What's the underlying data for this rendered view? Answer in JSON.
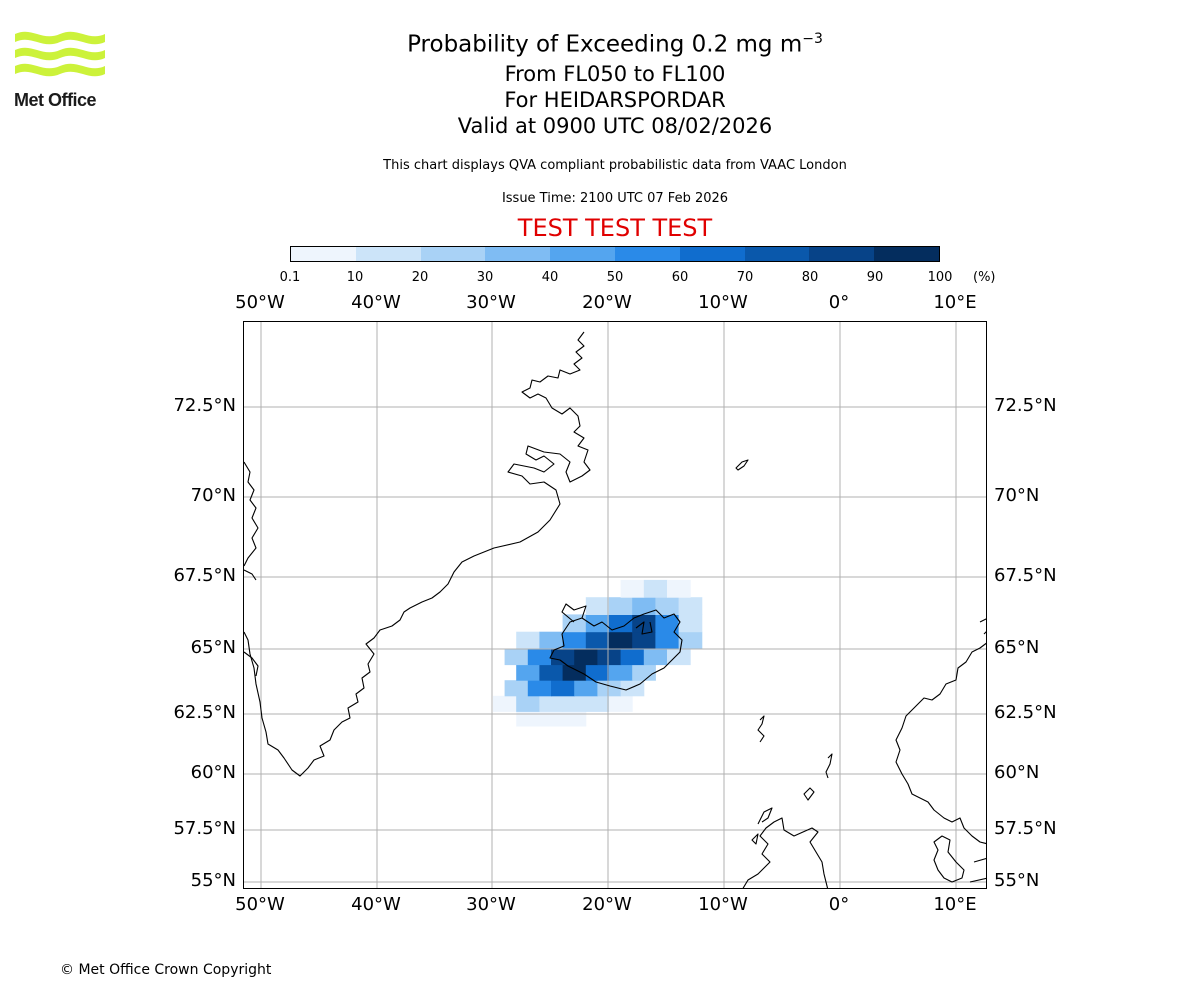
{
  "logo": {
    "text": "Met Office",
    "color": "#ccf23a"
  },
  "header": {
    "title_main": "Probability of Exceeding 0.2 mg m",
    "title_exp": "−3",
    "levels": "From FL050 to FL100",
    "target": "For HEIDARSPORDAR",
    "valid": "Valid at 0900 UTC 08/02/2026",
    "description": "This chart displays QVA compliant probabilistic data from VAAC London",
    "issue_time": "Issue Time: 2100 UTC 07 Feb 2026",
    "test_banner": "TEST TEST TEST",
    "test_color": "#e00000"
  },
  "colorbar": {
    "ticks": [
      "0.1",
      "10",
      "20",
      "30",
      "40",
      "50",
      "60",
      "70",
      "80",
      "90",
      "100"
    ],
    "unit": "(%)",
    "colors": [
      "#eef5fd",
      "#cce4f9",
      "#a9d2f6",
      "#7fbcf3",
      "#54a5ef",
      "#2a8ae8",
      "#106dce",
      "#0a58ab",
      "#074388",
      "#042d5e"
    ]
  },
  "map": {
    "lon_labels": [
      "50°W",
      "40°W",
      "30°W",
      "20°W",
      "10°W",
      "0°",
      "10°E"
    ],
    "lat_labels": [
      "72.5°N",
      "70°N",
      "67.5°N",
      "65°N",
      "62.5°N",
      "60°N",
      "57.5°N",
      "55°N"
    ],
    "plume": [
      {
        "lon": -27,
        "lat": 62.3,
        "p": 0.1
      },
      {
        "lon": -25,
        "lat": 62.3,
        "p": 0.1
      },
      {
        "lon": -23,
        "lat": 62.3,
        "p": 0.1
      },
      {
        "lon": -29,
        "lat": 62.9,
        "p": 0.1
      },
      {
        "lon": -27,
        "lat": 62.9,
        "p": 20
      },
      {
        "lon": -25,
        "lat": 62.9,
        "p": 10
      },
      {
        "lon": -23,
        "lat": 62.9,
        "p": 10
      },
      {
        "lon": -21,
        "lat": 62.9,
        "p": 10
      },
      {
        "lon": -19,
        "lat": 62.9,
        "p": 0.1
      },
      {
        "lon": -28,
        "lat": 63.5,
        "p": 20
      },
      {
        "lon": -26,
        "lat": 63.5,
        "p": 50
      },
      {
        "lon": -24,
        "lat": 63.5,
        "p": 60
      },
      {
        "lon": -22,
        "lat": 63.5,
        "p": 40
      },
      {
        "lon": -20,
        "lat": 63.5,
        "p": 20
      },
      {
        "lon": -18,
        "lat": 63.5,
        "p": 10
      },
      {
        "lon": -27,
        "lat": 64.1,
        "p": 40
      },
      {
        "lon": -25,
        "lat": 64.1,
        "p": 70
      },
      {
        "lon": -23,
        "lat": 64.1,
        "p": 90
      },
      {
        "lon": -21,
        "lat": 64.1,
        "p": 60
      },
      {
        "lon": -19,
        "lat": 64.1,
        "p": 40
      },
      {
        "lon": -17,
        "lat": 64.1,
        "p": 20
      },
      {
        "lon": -28,
        "lat": 64.7,
        "p": 20
      },
      {
        "lon": -26,
        "lat": 64.7,
        "p": 50
      },
      {
        "lon": -24,
        "lat": 64.7,
        "p": 80
      },
      {
        "lon": -22,
        "lat": 64.7,
        "p": 90
      },
      {
        "lon": -20,
        "lat": 64.7,
        "p": 80
      },
      {
        "lon": -18,
        "lat": 64.7,
        "p": 60
      },
      {
        "lon": -16,
        "lat": 64.7,
        "p": 30
      },
      {
        "lon": -14,
        "lat": 64.7,
        "p": 10
      },
      {
        "lon": -27,
        "lat": 65.3,
        "p": 10
      },
      {
        "lon": -25,
        "lat": 65.3,
        "p": 30
      },
      {
        "lon": -23,
        "lat": 65.3,
        "p": 50
      },
      {
        "lon": -21,
        "lat": 65.3,
        "p": 70
      },
      {
        "lon": -19,
        "lat": 65.3,
        "p": 90
      },
      {
        "lon": -17,
        "lat": 65.3,
        "p": 80
      },
      {
        "lon": -15,
        "lat": 65.3,
        "p": 50
      },
      {
        "lon": -13,
        "lat": 65.3,
        "p": 20
      },
      {
        "lon": -23,
        "lat": 65.9,
        "p": 20
      },
      {
        "lon": -21,
        "lat": 65.9,
        "p": 40
      },
      {
        "lon": -19,
        "lat": 65.9,
        "p": 60
      },
      {
        "lon": -17,
        "lat": 65.9,
        "p": 80
      },
      {
        "lon": -15,
        "lat": 65.9,
        "p": 50
      },
      {
        "lon": -13,
        "lat": 65.9,
        "p": 10
      },
      {
        "lon": -21,
        "lat": 66.5,
        "p": 10
      },
      {
        "lon": -19,
        "lat": 66.5,
        "p": 20
      },
      {
        "lon": -17,
        "lat": 66.5,
        "p": 30
      },
      {
        "lon": -15,
        "lat": 66.5,
        "p": 20
      },
      {
        "lon": -13,
        "lat": 66.5,
        "p": 10
      },
      {
        "lon": -18,
        "lat": 67.1,
        "p": 0.1
      },
      {
        "lon": -16,
        "lat": 67.1,
        "p": 10
      },
      {
        "lon": -14,
        "lat": 67.1,
        "p": 0.1
      }
    ]
  },
  "footer": {
    "copyright": "© Met Office Crown Copyright"
  }
}
